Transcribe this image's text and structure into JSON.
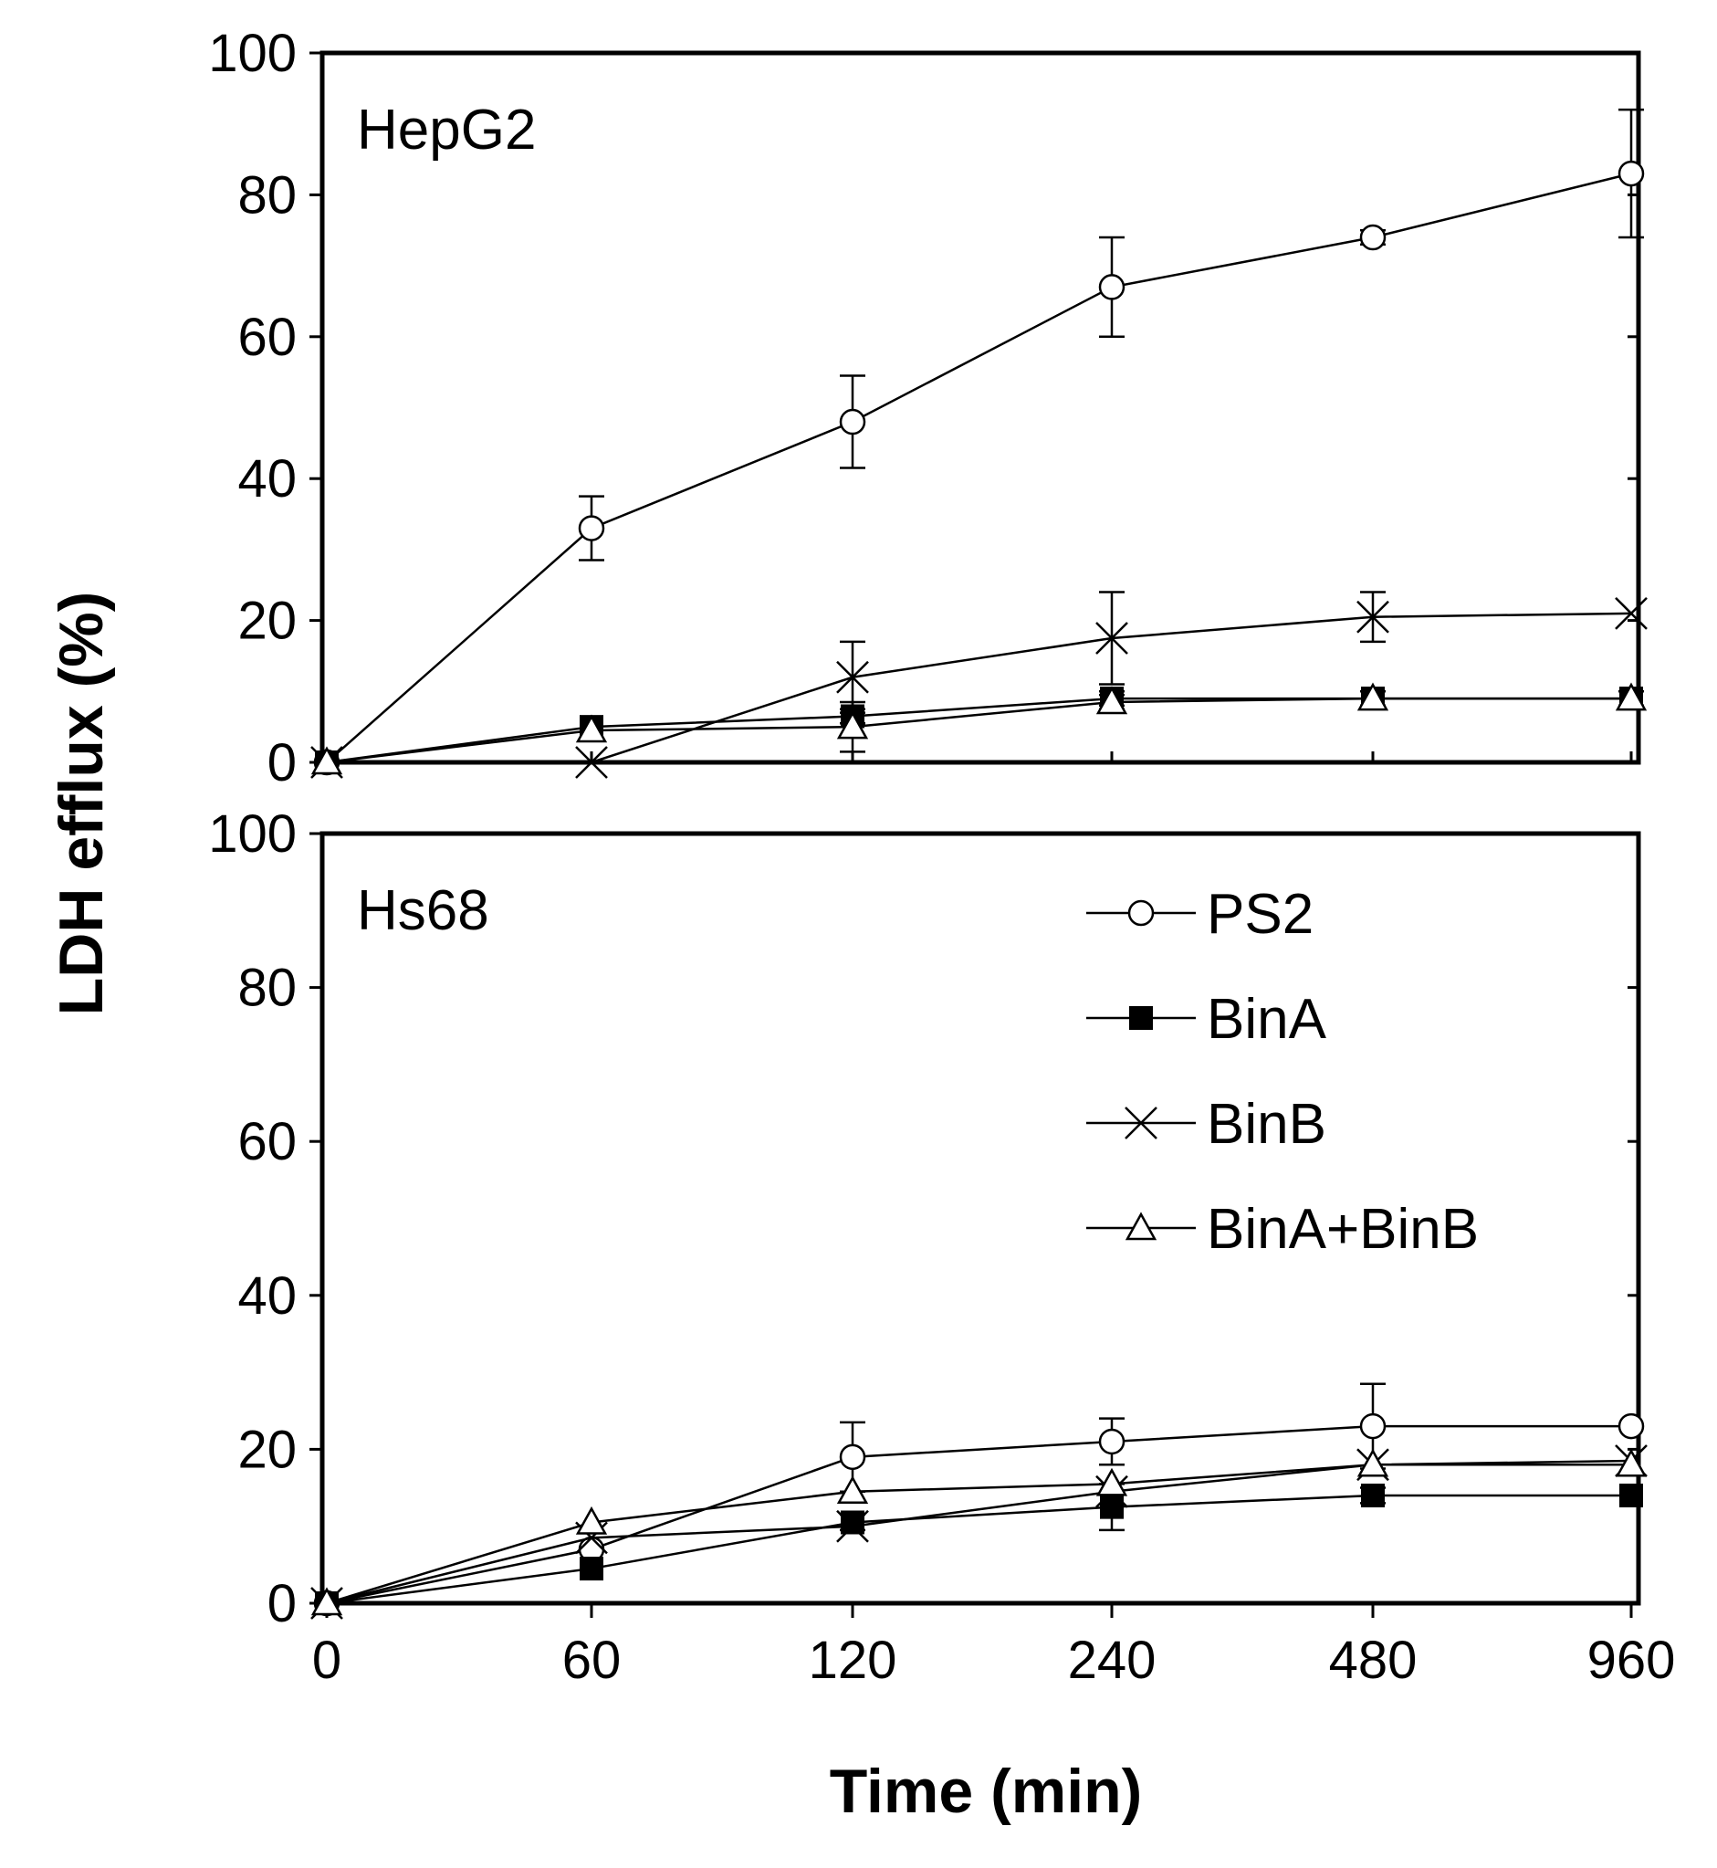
{
  "figure": {
    "ylabel": "LDH efflux (%)",
    "xlabel": "Time (min)"
  },
  "legend": [
    {
      "label": "PS2",
      "marker": "open-circle"
    },
    {
      "label": "BinA",
      "marker": "filled-square"
    },
    {
      "label": "BinB",
      "marker": "x-cross"
    },
    {
      "label": "BinA+BinB",
      "marker": "open-triangle"
    }
  ],
  "chart_data": [
    {
      "type": "line",
      "panel": "HepG2",
      "title": "HepG2",
      "categories": [
        "0",
        "60",
        "120",
        "240",
        "480",
        "960"
      ],
      "ylim": [
        0,
        100
      ],
      "yticks": [
        "0",
        "20",
        "40",
        "60",
        "80",
        "100"
      ],
      "series": [
        {
          "name": "PS2",
          "marker": "open-circle",
          "values": [
            0,
            33,
            48,
            67,
            74,
            83
          ],
          "errors": [
            0,
            4.5,
            6.5,
            7,
            1,
            9
          ]
        },
        {
          "name": "BinA",
          "marker": "filled-square",
          "values": [
            0,
            5,
            6.5,
            9,
            9,
            9
          ],
          "errors": [
            0,
            0,
            1,
            1,
            1,
            1
          ]
        },
        {
          "name": "BinB",
          "marker": "x-cross",
          "values": [
            0,
            0,
            12,
            17.5,
            20.5,
            21
          ],
          "errors": [
            0,
            0,
            5,
            6.5,
            3.5,
            0
          ]
        },
        {
          "name": "BinA+BinB",
          "marker": "open-triangle",
          "values": [
            0,
            4.5,
            5,
            8.5,
            9,
            9
          ],
          "errors": [
            0,
            0,
            3.5,
            1,
            1,
            1
          ]
        }
      ]
    },
    {
      "type": "line",
      "panel": "Hs68",
      "title": "Hs68",
      "categories": [
        "0",
        "60",
        "120",
        "240",
        "480",
        "960"
      ],
      "ylim": [
        0,
        100
      ],
      "yticks": [
        "0",
        "20",
        "40",
        "60",
        "80",
        "100"
      ],
      "series": [
        {
          "name": "PS2",
          "marker": "open-circle",
          "values": [
            0,
            7,
            19,
            21,
            23,
            23
          ],
          "errors": [
            0,
            0,
            4.5,
            3,
            5.5,
            0
          ]
        },
        {
          "name": "BinA",
          "marker": "filled-square",
          "values": [
            0,
            4.5,
            10.5,
            12.5,
            14,
            14
          ],
          "errors": [
            0,
            0,
            1,
            3,
            1,
            0
          ]
        },
        {
          "name": "BinB",
          "marker": "x-cross",
          "values": [
            0,
            8.5,
            10,
            14.5,
            18,
            18.5
          ],
          "errors": [
            0,
            0,
            0,
            0,
            0,
            0
          ]
        },
        {
          "name": "BinA+BinB",
          "marker": "open-triangle",
          "values": [
            0,
            10.5,
            14.5,
            15.5,
            18,
            18
          ],
          "errors": [
            0,
            0,
            0,
            0,
            0,
            0
          ]
        }
      ]
    }
  ]
}
